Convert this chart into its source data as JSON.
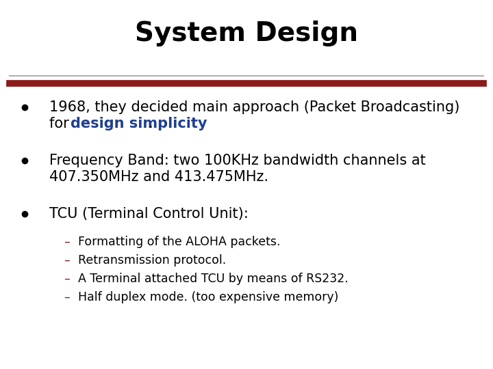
{
  "title": "System Design",
  "title_fontsize": 28,
  "title_color": "#000000",
  "title_fontweight": "bold",
  "background_color": "#ffffff",
  "divider_color_top": "#b0b0b0",
  "divider_color_bottom": "#8b1a1a",
  "bullet_color": "#000000",
  "bullet_fontsize": 15,
  "sub_bullet_fontsize": 12.5,
  "sub_bullets": [
    "Formatting of the ALOHA packets.",
    "Retransmission protocol.",
    "A Terminal attached TCU by means of RS232.",
    "Half duplex mode. (too expensive memory)"
  ],
  "sub_bullet_color": "#000000",
  "dash_color": "#8b1a1a"
}
